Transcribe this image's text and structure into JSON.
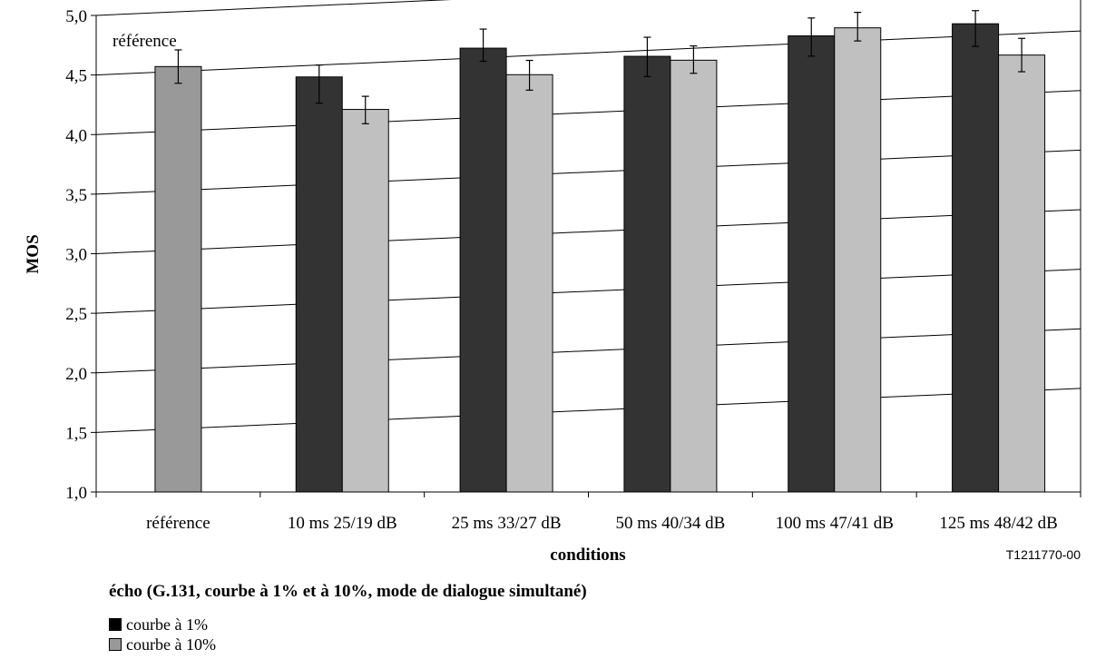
{
  "chart_data": {
    "type": "bar",
    "ylabel": "MOS",
    "xlabel": "conditions",
    "figure_id": "T1211770-00",
    "ylim": [
      1.0,
      5.0
    ],
    "yticks": [
      "1,0",
      "1,5",
      "2,0",
      "2,5",
      "3,0",
      "3,5",
      "4,0",
      "4,5",
      "5,0"
    ],
    "categories": [
      "référence",
      "10 ms 25/19 dB",
      "25 ms 33/27 dB",
      "50 ms 40/34 dB",
      "100 ms 47/41 dB",
      "125 ms 48/42 dB"
    ],
    "reference_label": "référence",
    "reference": {
      "value": 4.54,
      "err_low": 4.4,
      "err_high": 4.68
    },
    "series": [
      {
        "name": "courbe à 1%",
        "values": [
          null,
          4.4,
          4.58,
          4.45,
          4.56,
          4.6
        ],
        "err_low": [
          null,
          4.18,
          4.47,
          4.28,
          4.39,
          4.41
        ],
        "err_high": [
          null,
          4.5,
          4.74,
          4.61,
          4.71,
          4.71
        ]
      },
      {
        "name": "courbe à 10%",
        "values": [
          null,
          4.11,
          4.34,
          4.4,
          4.61,
          4.32
        ],
        "err_low": [
          null,
          3.99,
          4.21,
          4.29,
          4.5,
          4.18
        ],
        "err_high": [
          null,
          4.22,
          4.46,
          4.52,
          4.74,
          4.46
        ]
      }
    ],
    "grid": true,
    "colors": {
      "reference": "#999999",
      "dark": "#333333",
      "light": "#c0c0c0"
    }
  },
  "caption": "écho (G.131, courbe à 1% et à 10%, mode de dialogue simultané)",
  "legend": [
    {
      "label": "courbe à 1%",
      "color": "#000000"
    },
    {
      "label": "courbe à 10%",
      "color": "#999999"
    }
  ]
}
